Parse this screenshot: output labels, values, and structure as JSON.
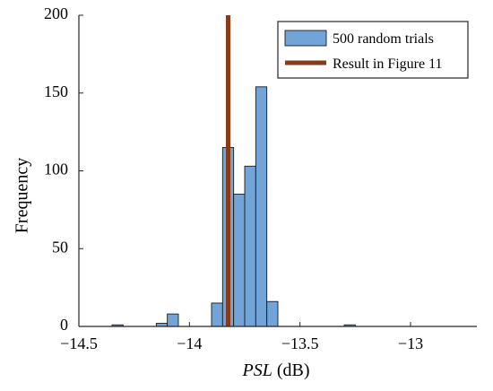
{
  "chart_data": {
    "type": "bar",
    "xlabel_italic": "PSL",
    "xlabel_unit": " (dB)",
    "ylabel": "Frequency",
    "xlim": [
      -14.5,
      -12.7
    ],
    "ylim": [
      0,
      200
    ],
    "xticks": [
      -14.5,
      -14,
      -13.5,
      -13
    ],
    "xtick_labels": [
      "−14.5",
      "−14",
      "−13.5",
      "−13"
    ],
    "yticks": [
      0,
      50,
      100,
      150,
      200
    ],
    "ytick_labels": [
      "0",
      "50",
      "100",
      "150",
      "200"
    ],
    "bin_width": 0.05,
    "bins": [
      {
        "x0": -14.35,
        "count": 1
      },
      {
        "x0": -14.15,
        "count": 2
      },
      {
        "x0": -14.1,
        "count": 8
      },
      {
        "x0": -13.9,
        "count": 15
      },
      {
        "x0": -13.85,
        "count": 115
      },
      {
        "x0": -13.8,
        "count": 85
      },
      {
        "x0": -13.75,
        "count": 103
      },
      {
        "x0": -13.7,
        "count": 154
      },
      {
        "x0": -13.65,
        "count": 16
      },
      {
        "x0": -13.3,
        "count": 1
      }
    ],
    "reference_line_x": -13.825,
    "legend": {
      "placement": "top-right",
      "entries": [
        {
          "label": "500 random trials",
          "kind": "bar"
        },
        {
          "label": "Result in Figure 11",
          "kind": "line"
        }
      ]
    },
    "colors": {
      "bar_fill": "#72a4d8",
      "bar_stroke": "#1a1a1a",
      "line": "#8b3a17",
      "axis": "#262626"
    }
  }
}
